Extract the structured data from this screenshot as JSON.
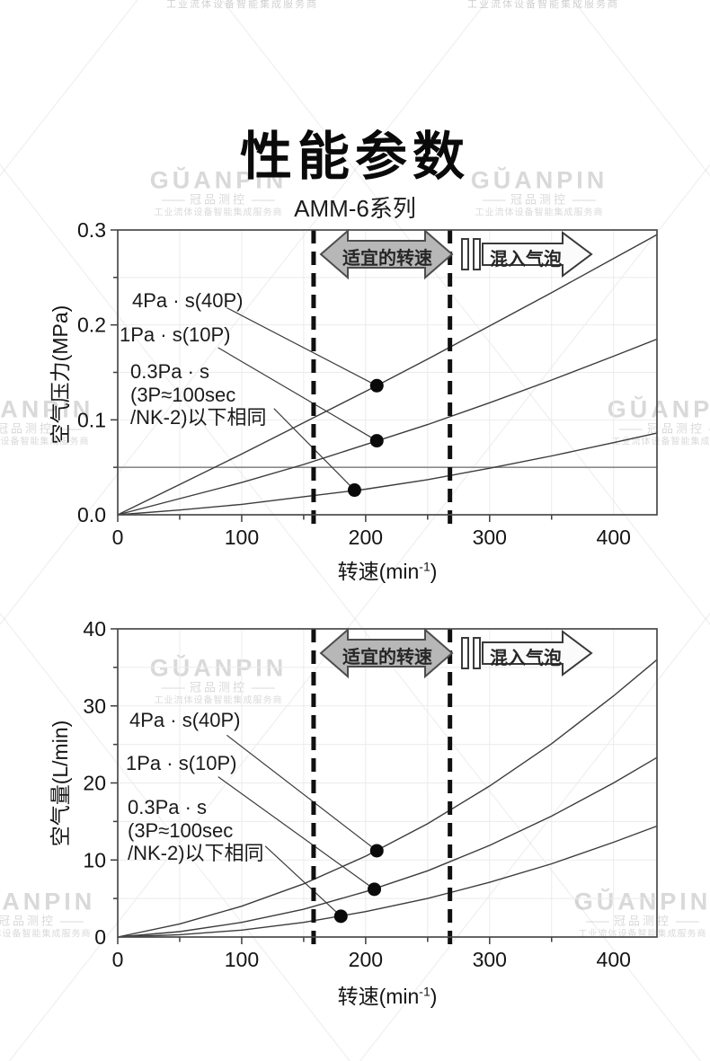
{
  "page": {
    "title": "性能参数"
  },
  "watermark": {
    "brand": "GŬANPIN",
    "sub": "冠品测控",
    "tagline": "工业流体设备智能集成服务商"
  },
  "chart_data": [
    {
      "type": "line",
      "title": "AMM-6系列",
      "xlabel": "转速(min⁻¹)",
      "xlabel_base": "转速(min",
      "xlabel_sup": "-1",
      "xlabel_close": ")",
      "ylabel": "空气压力(MPa)",
      "xlim": [
        0,
        435
      ],
      "ylim": [
        0,
        0.3
      ],
      "x_ticks": [
        0,
        100,
        200,
        300,
        400
      ],
      "x_tick_labels": [
        "0",
        "100",
        "200",
        "300",
        "400"
      ],
      "y_ticks": [
        0,
        0.1,
        0.2,
        0.3
      ],
      "y_tick_labels": [
        "0.0",
        "0.1",
        "0.2",
        "0.3"
      ],
      "x_grid_step": 50,
      "y_grid_step": 0.05,
      "x_major_step": 100,
      "y_major_step": 0.1,
      "grid": true,
      "legend_position": "labels-inside-plot",
      "reference_line_y": 0.05,
      "dashed_lines_x": [
        158,
        268
      ],
      "suitable_range_x": [
        158,
        268
      ],
      "x": [
        0,
        50,
        100,
        150,
        200,
        250,
        300,
        350,
        400,
        435
      ],
      "series": [
        {
          "name": "4Pa · s(40P)",
          "y": [
            0,
            0.032,
            0.064,
            0.097,
            0.13,
            0.164,
            0.199,
            0.234,
            0.27,
            0.295
          ],
          "marker": [
            209,
            0.136
          ],
          "leader": [
            88,
            0.218,
            209,
            0.136
          ]
        },
        {
          "name": "1Pa · s(10P)",
          "y": [
            0,
            0.017,
            0.034,
            0.053,
            0.074,
            0.095,
            0.118,
            0.142,
            0.167,
            0.185
          ],
          "marker": [
            209,
            0.078
          ],
          "leader": [
            81,
            0.176,
            209,
            0.078
          ]
        },
        {
          "name": "0.3Pa · s",
          "name2": "(3P≈100sec",
          "name3": "/NK-2)以下相同",
          "y": [
            0,
            0.005,
            0.011,
            0.019,
            0.027,
            0.037,
            0.049,
            0.062,
            0.076,
            0.086
          ],
          "marker": [
            191,
            0.026
          ],
          "leader": [
            126,
            0.112,
            191,
            0.026
          ]
        }
      ],
      "annotations": {
        "range_arrow": "适宜的转速",
        "bubble_arrow": "混入气泡"
      }
    },
    {
      "type": "line",
      "title": "",
      "xlabel": "转速(min⁻¹)",
      "xlabel_base": "转速(min",
      "xlabel_sup": "-1",
      "xlabel_close": ")",
      "ylabel": "空气量(L/min)",
      "xlim": [
        0,
        435
      ],
      "ylim": [
        0,
        40
      ],
      "x_ticks": [
        0,
        100,
        200,
        300,
        400
      ],
      "x_tick_labels": [
        "0",
        "100",
        "200",
        "300",
        "400"
      ],
      "y_ticks": [
        0,
        10,
        20,
        30,
        40
      ],
      "y_tick_labels": [
        "0",
        "10",
        "20",
        "30",
        "40"
      ],
      "x_grid_step": 50,
      "y_grid_step": 5,
      "x_major_step": 100,
      "y_major_step": 10,
      "grid": true,
      "legend_position": "labels-inside-plot",
      "reference_line_y": null,
      "dashed_lines_x": [
        158,
        268
      ],
      "suitable_range_x": [
        158,
        268
      ],
      "x": [
        0,
        50,
        100,
        150,
        200,
        250,
        300,
        350,
        400,
        435
      ],
      "series": [
        {
          "name": "4Pa · s(40P)",
          "y": [
            0,
            1.7,
            4.0,
            6.9,
            10.5,
            14.7,
            19.6,
            25.1,
            31.3,
            36.0
          ],
          "marker": [
            209,
            11.2
          ],
          "leader": [
            88,
            26.2,
            209,
            11.2
          ]
        },
        {
          "name": "1Pa · s(10P)",
          "y": [
            0,
            0.7,
            1.9,
            3.6,
            5.9,
            8.6,
            11.9,
            15.7,
            20.0,
            23.3
          ],
          "marker": [
            207,
            6.2
          ],
          "leader": [
            81,
            20.8,
            207,
            6.2
          ]
        },
        {
          "name": "0.3Pa · s",
          "name2": "(3P≈100sec",
          "name3": "/NK-2)以下相同",
          "y": [
            0,
            0.3,
            0.9,
            1.9,
            3.3,
            5.0,
            7.1,
            9.5,
            12.3,
            14.4
          ],
          "marker": [
            180,
            2.7
          ],
          "leader": [
            119,
            11.8,
            180,
            2.7
          ]
        }
      ],
      "annotations": {
        "range_arrow": "适宜的转速",
        "bubble_arrow": "混入气泡"
      }
    }
  ]
}
